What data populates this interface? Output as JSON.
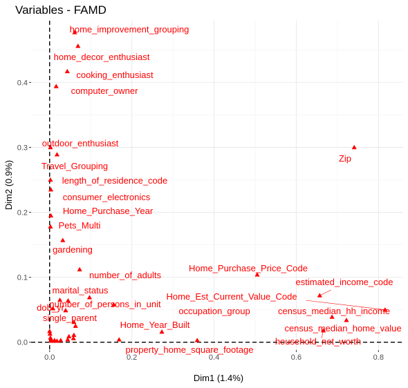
{
  "chart_data": {
    "type": "scatter",
    "title": "Variables - FAMD",
    "xlabel": "Dim1 (1.4%)",
    "ylabel": "Dim2 (0.9%)",
    "xlim": [
      -0.045,
      0.86
    ],
    "ylim": [
      -0.012,
      0.495
    ],
    "xticks": [
      0.0,
      0.2,
      0.4,
      0.6,
      0.8
    ],
    "yticks": [
      0.0,
      0.1,
      0.2,
      0.3,
      0.4
    ],
    "x_tick_labels": [
      "0.0",
      "0.2",
      "0.4",
      "0.6",
      "0.8"
    ],
    "y_tick_labels": [
      "0.0",
      "0.1",
      "0.2",
      "0.3",
      "0.4"
    ],
    "grid": true,
    "reference_lines": {
      "x": 0,
      "y": 0,
      "style": "dashed"
    },
    "color": "#ff0000",
    "points": [
      {
        "label": "home_improvement_grouping",
        "x": 0.061,
        "y": 0.477
      },
      {
        "label": "home_decor_enthusiast",
        "x": 0.069,
        "y": 0.456
      },
      {
        "label": "cooking_enthusiast",
        "x": 0.043,
        "y": 0.417
      },
      {
        "label": "computer_owner",
        "x": 0.016,
        "y": 0.394
      },
      {
        "label": "outdoor_enthusiast",
        "x": 0.002,
        "y": 0.3
      },
      {
        "label": "Travel_Grouping",
        "x": 0.018,
        "y": 0.289
      },
      {
        "label": "length_of_residence_code",
        "x": 0.002,
        "y": 0.25
      },
      {
        "label": "consumer_electronics",
        "x": 0.003,
        "y": 0.235
      },
      {
        "label": "Home_Purchase_Year",
        "x": 0.003,
        "y": 0.195
      },
      {
        "label": "Pets_Multi",
        "x": 0.002,
        "y": 0.178
      },
      {
        "label": "gardening",
        "x": 0.032,
        "y": 0.157
      },
      {
        "label": "number_of_adults",
        "x": 0.073,
        "y": 0.112
      },
      {
        "label": "marital_status",
        "x": 0.025,
        "y": 0.065
      },
      {
        "label": "number_of_persons_in_unit",
        "x": 0.097,
        "y": 0.069
      },
      {
        "label": "dob_yr",
        "x": 0.008,
        "y": 0.052
      },
      {
        "label": "single_parent",
        "x": 0.039,
        "y": 0.049
      },
      {
        "label": "occupation_group",
        "x": 0.156,
        "y": 0.058
      },
      {
        "label": "Home_Est_Current_Value_Code",
        "x": 0.816,
        "y": 0.05
      },
      {
        "label": "Home_Purchase_Price_Code",
        "x": 0.505,
        "y": 0.104
      },
      {
        "label": "estimated_income_code",
        "x": 0.657,
        "y": 0.072
      },
      {
        "label": "census_median_hh_income",
        "x": 0.687,
        "y": 0.039
      },
      {
        "label": "census_median_home_value",
        "x": 0.722,
        "y": 0.034
      },
      {
        "label": "household_net_worth",
        "x": 0.666,
        "y": 0.018
      },
      {
        "label": "Zip",
        "x": 0.741,
        "y": 0.3
      },
      {
        "label": "Home_Year_Built",
        "x": 0.273,
        "y": 0.016
      },
      {
        "label": "property_home_square_footage",
        "x": 0.359,
        "y": 0.003
      },
      {
        "label": "",
        "x": 0.169,
        "y": 0.004
      },
      {
        "label": "",
        "x": 0.0,
        "y": 0.017
      },
      {
        "label": "",
        "x": 0.001,
        "y": 0.013
      },
      {
        "label": "",
        "x": 0.002,
        "y": 0.007
      },
      {
        "label": "",
        "x": 0.003,
        "y": 0.003
      },
      {
        "label": "",
        "x": 0.006,
        "y": 0.002
      },
      {
        "label": "",
        "x": 0.012,
        "y": 0.003
      },
      {
        "label": "",
        "x": 0.018,
        "y": 0.002
      },
      {
        "label": "",
        "x": 0.027,
        "y": 0.003
      },
      {
        "label": "",
        "x": 0.044,
        "y": 0.004
      },
      {
        "label": "",
        "x": 0.047,
        "y": 0.009
      },
      {
        "label": "",
        "x": 0.058,
        "y": 0.006
      },
      {
        "label": "",
        "x": 0.059,
        "y": 0.011
      },
      {
        "label": "",
        "x": 0.063,
        "y": 0.025
      },
      {
        "label": "",
        "x": 0.059,
        "y": 0.031
      },
      {
        "label": "",
        "x": 0.045,
        "y": 0.064
      }
    ]
  }
}
